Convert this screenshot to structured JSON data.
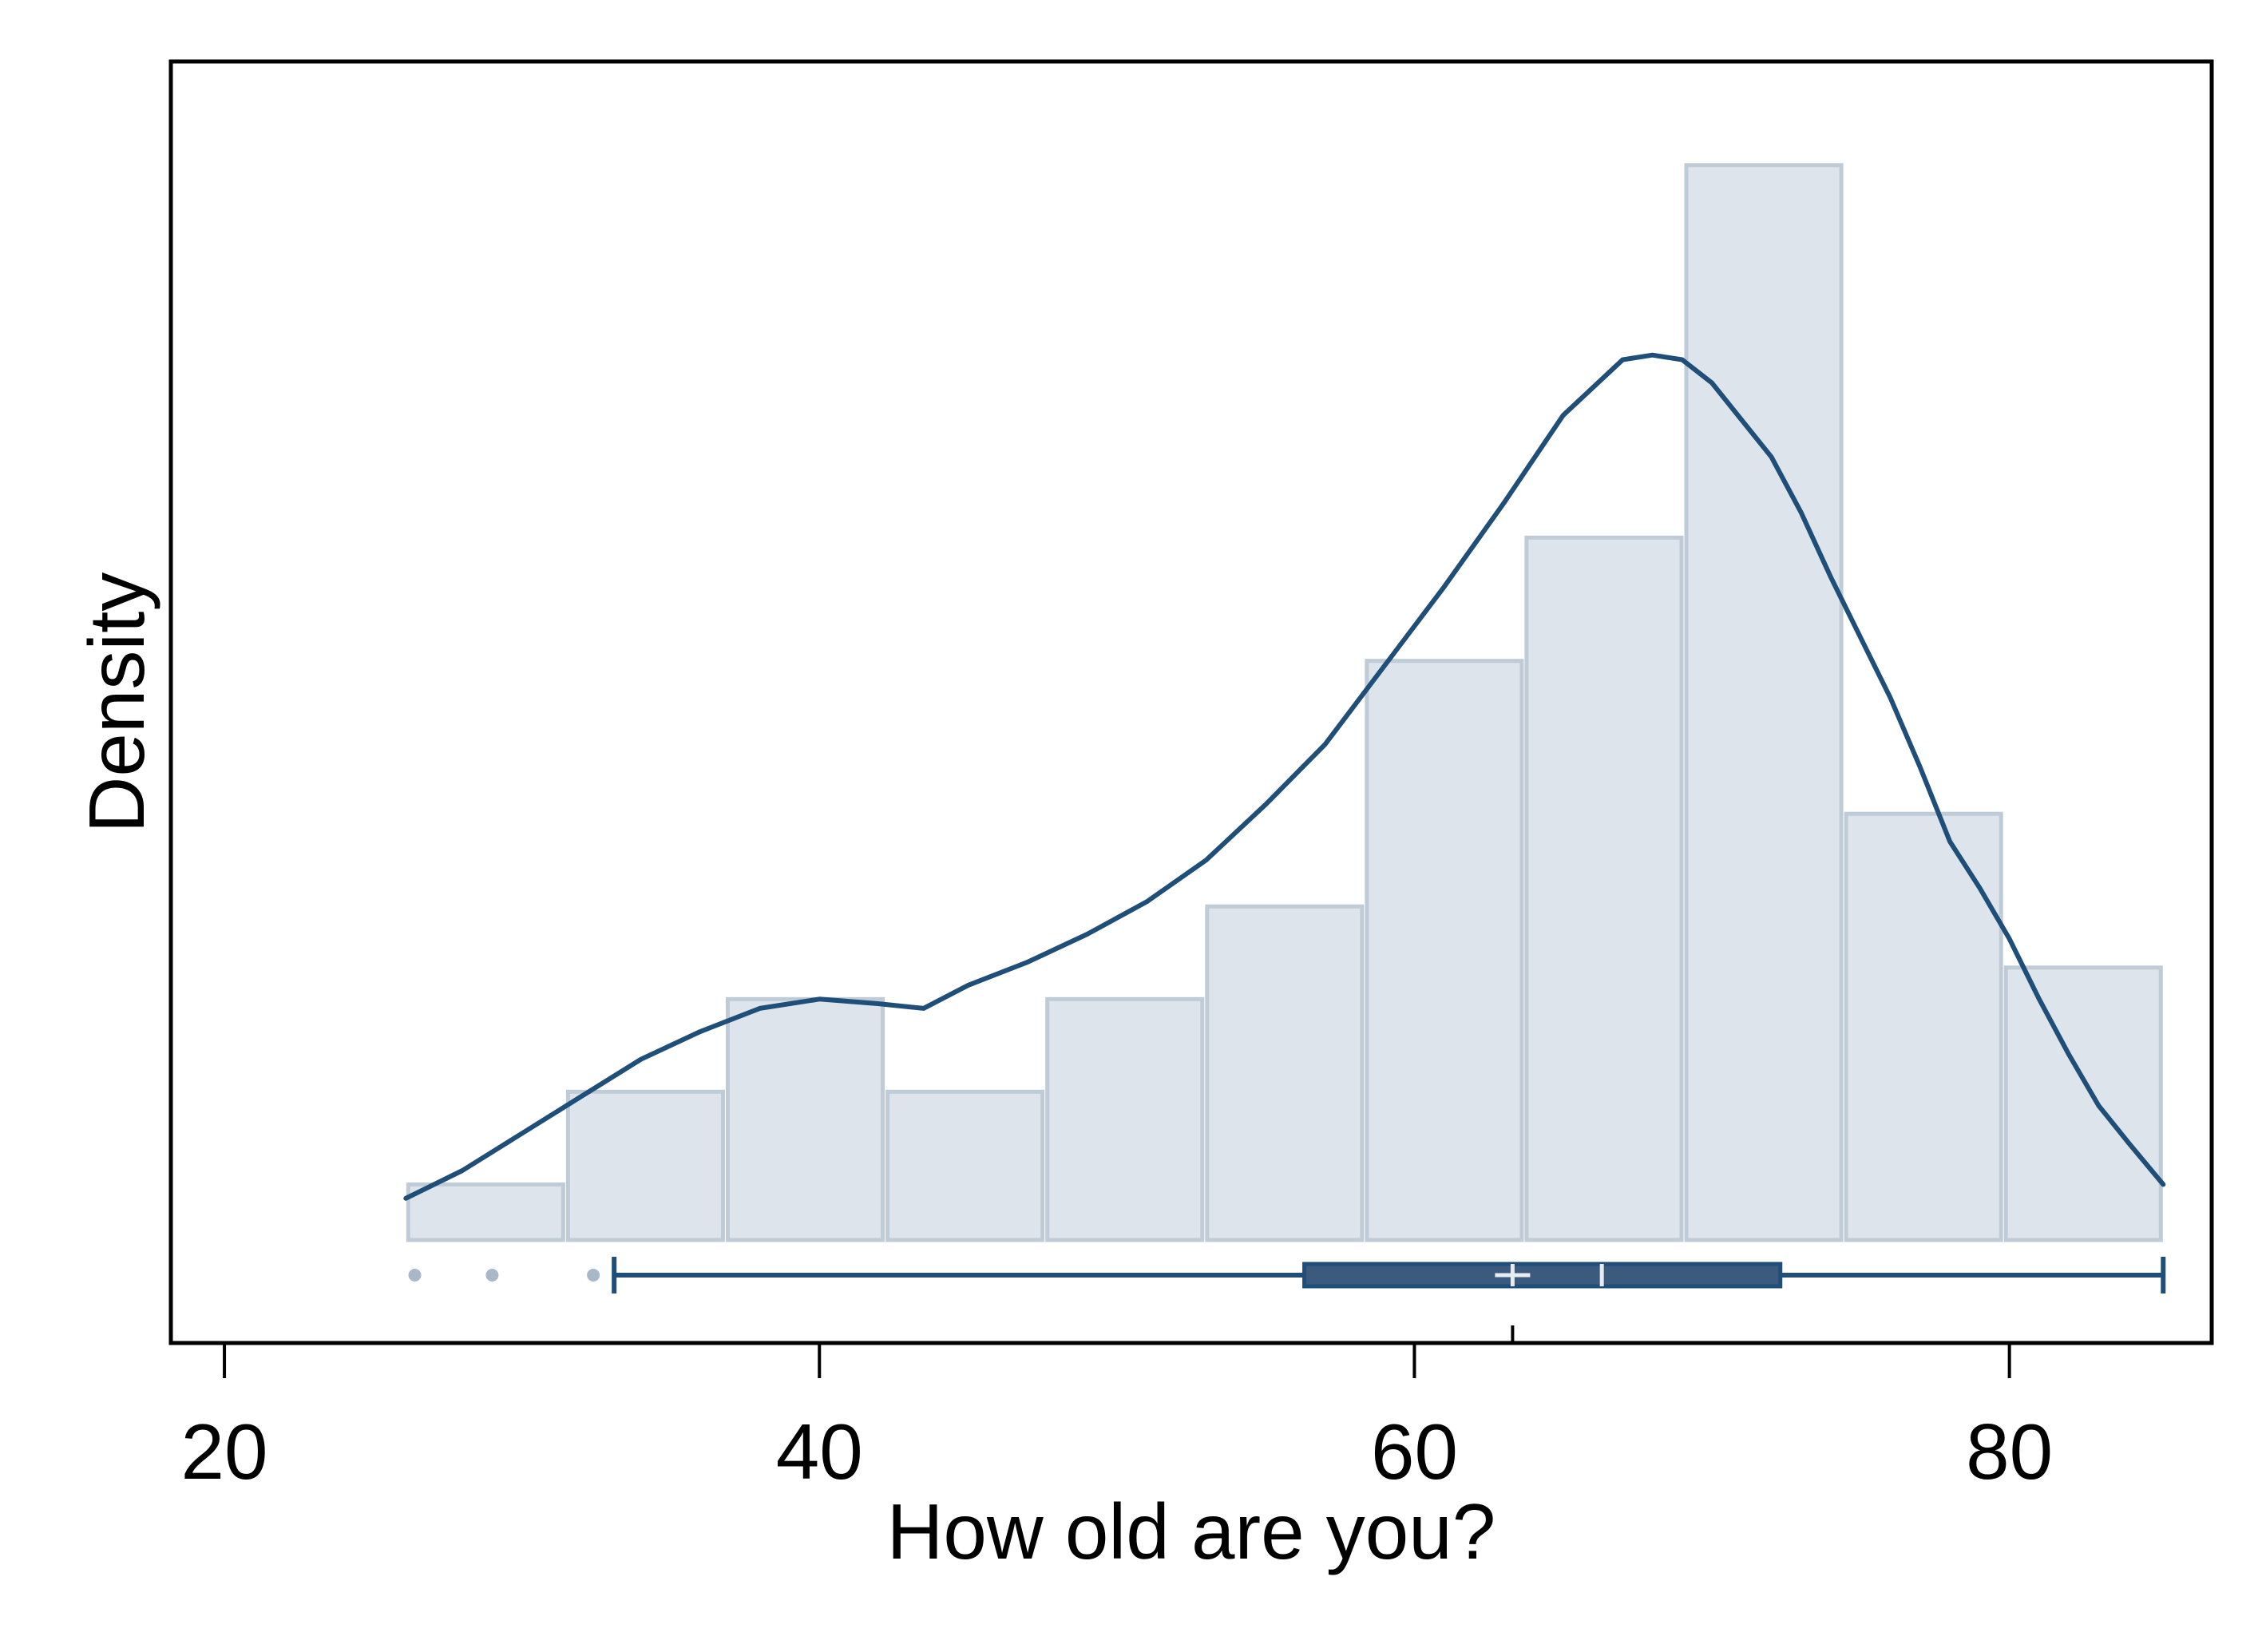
{
  "chart_data": {
    "type": "histogram",
    "xlabel": "How old are you?",
    "ylabel": "Density",
    "xlim": [
      18.2,
      86.8
    ],
    "x_ticks": [
      20,
      40,
      60,
      80
    ],
    "x_tick_labels": [
      "20",
      "40",
      "60",
      "80"
    ],
    "y_ticks_shown": false,
    "grid": false,
    "legend": "none",
    "histogram": {
      "bin_edges": [
        26.1,
        31.47,
        36.84,
        42.21,
        47.58,
        52.95,
        58.32,
        63.69,
        69.06,
        74.43,
        79.8,
        85.17
      ],
      "heights": [
        0.6,
        1.6,
        2.6,
        1.6,
        2.6,
        3.6,
        6.25,
        7.58,
        11.6,
        4.6,
        2.94
      ],
      "ylim": [
        -1.1,
        12.15
      ],
      "fill_color": "#dde4eb",
      "edge_color": "#bfcbd6"
    },
    "density_curve": {
      "x": [
        26.1,
        28.0,
        30.0,
        32.0,
        34.0,
        36.0,
        38.0,
        40.0,
        42.0,
        43.5,
        45.0,
        47.0,
        49.0,
        51.0,
        53.0,
        55.0,
        57.0,
        59.0,
        61.0,
        63.0,
        65.0,
        67.0,
        68.0,
        69.0,
        70.0,
        71.0,
        72.0,
        73.0,
        74.0,
        75.0,
        76.0,
        77.0,
        78.0,
        79.0,
        80.0,
        81.0,
        82.0,
        83.0,
        84.0,
        85.17
      ],
      "y": [
        0.45,
        0.75,
        1.15,
        1.55,
        1.95,
        2.25,
        2.5,
        2.6,
        2.55,
        2.5,
        2.75,
        3.0,
        3.3,
        3.65,
        4.1,
        4.7,
        5.35,
        6.2,
        7.05,
        7.95,
        8.9,
        9.5,
        9.55,
        9.5,
        9.25,
        8.85,
        8.45,
        7.85,
        7.15,
        6.5,
        5.85,
        5.1,
        4.3,
        3.8,
        3.25,
        2.6,
        2.0,
        1.45,
        1.05,
        0.6
      ],
      "color": "#1f4e79"
    },
    "boxplot": {
      "whisker_low": 33.1,
      "q1": 56.3,
      "median": 66.3,
      "mean": 63.3,
      "q3": 72.3,
      "whisker_high": 85.17,
      "outliers": [
        26.4,
        29.0,
        32.4
      ],
      "box_color": "#3b5a7d",
      "line_color": "#1f4e79",
      "outlier_color": "#a9b8c8"
    }
  }
}
